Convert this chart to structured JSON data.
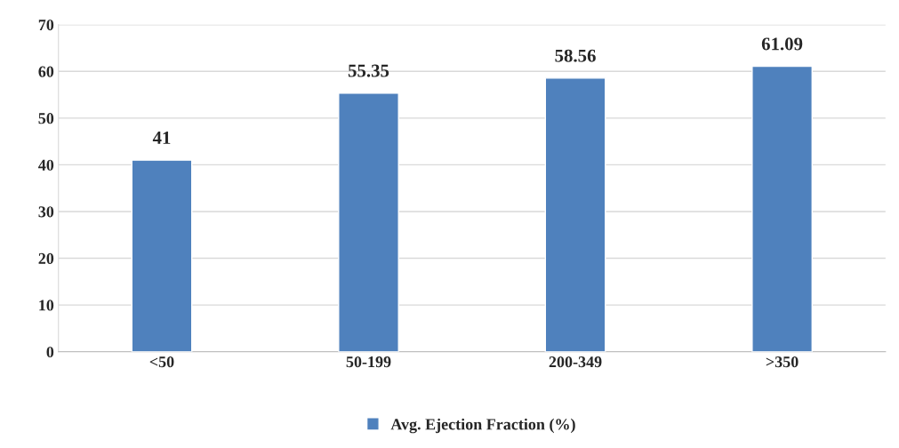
{
  "chart_data": {
    "type": "bar",
    "categories": [
      "<50",
      "50-199",
      "200-349",
      ">350"
    ],
    "series": [
      {
        "name": "Avg. Ejection Fraction (%)",
        "color": "#4f81bd",
        "values": [
          41,
          55.35,
          58.56,
          61.09
        ]
      }
    ],
    "ylim": [
      0,
      70
    ],
    "yticks": [
      0,
      10,
      20,
      30,
      40,
      50,
      60,
      70
    ],
    "grid": "y",
    "legend": "bottom",
    "data_labels": true
  }
}
